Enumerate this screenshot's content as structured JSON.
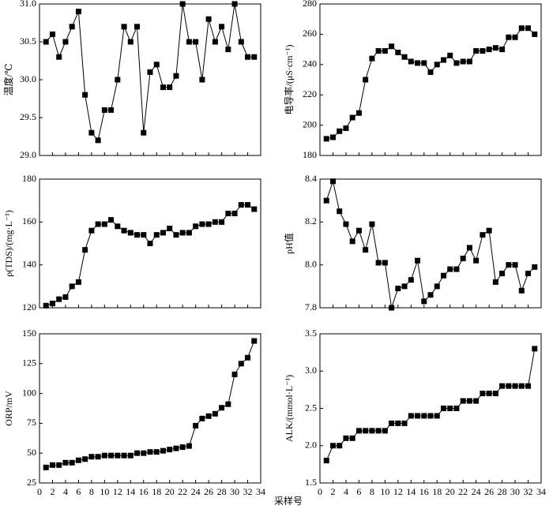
{
  "x_label": "采样号",
  "chart_data": [
    {
      "type": "line",
      "ylabel": "温度/℃",
      "x": [
        1,
        2,
        3,
        4,
        5,
        6,
        7,
        8,
        9,
        10,
        11,
        12,
        13,
        14,
        15,
        16,
        17,
        18,
        19,
        20,
        21,
        22,
        23,
        24,
        25,
        26,
        27,
        28,
        29,
        30,
        31,
        32,
        33
      ],
      "values": [
        30.5,
        30.6,
        30.3,
        30.5,
        30.7,
        30.9,
        29.8,
        29.3,
        29.2,
        29.6,
        29.6,
        30.0,
        30.7,
        30.5,
        30.7,
        29.3,
        30.1,
        30.2,
        29.9,
        29.9,
        30.05,
        31.0,
        30.5,
        30.5,
        30.0,
        30.8,
        30.5,
        30.7,
        30.4,
        31.0,
        30.5,
        30.3,
        30.3
      ],
      "color": "#000000",
      "xlim": [
        0,
        34
      ],
      "xticks": [
        0,
        2,
        4,
        6,
        8,
        10,
        12,
        14,
        16,
        18,
        20,
        22,
        24,
        26,
        28,
        30,
        32,
        34
      ],
      "ylim": [
        29.0,
        31.0
      ],
      "yticks": [
        {
          "value": 29.0,
          "label": "29.0"
        },
        29.5,
        {
          "value": 30.0,
          "label": "30.0"
        },
        30.5,
        {
          "value": 31.0,
          "label": "31.0"
        }
      ]
    },
    {
      "type": "line",
      "ylabel": "电导率/(μS·cm⁻¹)",
      "x": [
        1,
        2,
        3,
        4,
        5,
        6,
        7,
        8,
        9,
        10,
        11,
        12,
        13,
        14,
        15,
        16,
        17,
        18,
        19,
        20,
        21,
        22,
        23,
        24,
        25,
        26,
        27,
        28,
        29,
        30,
        31,
        32,
        33
      ],
      "values": [
        191,
        192,
        196,
        198,
        205,
        208,
        230,
        244,
        249,
        249,
        252,
        248,
        245,
        242,
        241,
        241,
        235,
        240,
        243,
        246,
        241,
        242,
        242,
        249,
        249,
        250,
        251,
        250,
        258,
        258,
        264,
        264,
        260
      ],
      "color": "#000000",
      "xlim": [
        0,
        34
      ],
      "xticks": [
        0,
        2,
        4,
        6,
        8,
        10,
        12,
        14,
        16,
        18,
        20,
        22,
        24,
        26,
        28,
        30,
        32,
        34
      ],
      "ylim": [
        180,
        280
      ],
      "yticks": [
        180,
        200,
        220,
        240,
        260,
        280
      ]
    },
    {
      "type": "line",
      "ylabel": "ρ(TDS)/(mg·L⁻¹)",
      "x": [
        1,
        2,
        3,
        4,
        5,
        6,
        7,
        8,
        9,
        10,
        11,
        12,
        13,
        14,
        15,
        16,
        17,
        18,
        19,
        20,
        21,
        22,
        23,
        24,
        25,
        26,
        27,
        28,
        29,
        30,
        31,
        32,
        33
      ],
      "values": [
        121,
        122,
        124,
        125,
        130,
        132,
        147,
        156,
        159,
        159,
        161,
        158,
        156,
        155,
        154,
        154,
        150,
        154,
        155,
        157,
        154,
        155,
        155,
        158,
        159,
        159,
        160,
        160,
        164,
        164,
        168,
        168,
        166
      ],
      "color": "#000000",
      "xlim": [
        0,
        34
      ],
      "xticks": [
        0,
        2,
        4,
        6,
        8,
        10,
        12,
        14,
        16,
        18,
        20,
        22,
        24,
        26,
        28,
        30,
        32,
        34
      ],
      "ylim": [
        120,
        180
      ],
      "yticks": [
        120,
        140,
        160,
        180
      ]
    },
    {
      "type": "line",
      "ylabel": "pH值",
      "x": [
        1,
        2,
        3,
        4,
        5,
        6,
        7,
        8,
        9,
        10,
        11,
        12,
        13,
        14,
        15,
        16,
        17,
        18,
        19,
        20,
        21,
        22,
        23,
        24,
        25,
        26,
        27,
        28,
        29,
        30,
        31,
        32,
        33
      ],
      "values": [
        8.3,
        8.39,
        8.25,
        8.19,
        8.11,
        8.16,
        8.07,
        8.19,
        8.01,
        8.01,
        7.8,
        7.89,
        7.9,
        7.93,
        8.02,
        7.83,
        7.86,
        7.9,
        7.95,
        7.98,
        7.98,
        8.03,
        8.08,
        8.02,
        8.14,
        8.16,
        7.92,
        7.96,
        8.0,
        8.0,
        7.88,
        7.96,
        7.99
      ],
      "color": "#000000",
      "xlim": [
        0,
        34
      ],
      "xticks": [
        0,
        2,
        4,
        6,
        8,
        10,
        12,
        14,
        16,
        18,
        20,
        22,
        24,
        26,
        28,
        30,
        32,
        34
      ],
      "ylim": [
        7.8,
        8.4
      ],
      "yticks": [
        7.8,
        {
          "value": 8.0,
          "label": "8.0"
        },
        8.2,
        8.4
      ]
    },
    {
      "type": "line",
      "ylabel": "ORP/mV",
      "x": [
        1,
        2,
        3,
        4,
        5,
        6,
        7,
        8,
        9,
        10,
        11,
        12,
        13,
        14,
        15,
        16,
        17,
        18,
        19,
        20,
        21,
        22,
        23,
        24,
        25,
        26,
        27,
        28,
        29,
        30,
        31,
        32,
        33
      ],
      "values": [
        38,
        40,
        40,
        42,
        42,
        44,
        45,
        47,
        47,
        48,
        48,
        48,
        48,
        48,
        50,
        50,
        51,
        51,
        52,
        53,
        54,
        55,
        56,
        73,
        79,
        81,
        83,
        88,
        91,
        116,
        125,
        130,
        144
      ],
      "color": "#000000",
      "xlim": [
        0,
        34
      ],
      "xticks": [
        0,
        2,
        4,
        6,
        8,
        10,
        12,
        14,
        16,
        18,
        20,
        22,
        24,
        26,
        28,
        30,
        32,
        34
      ],
      "ylim": [
        25,
        150
      ],
      "yticks": [
        25,
        50,
        75,
        100,
        125,
        150
      ]
    },
    {
      "type": "line",
      "ylabel": "ALK/(mmol·L⁻¹)",
      "x": [
        1,
        2,
        3,
        4,
        5,
        6,
        7,
        8,
        9,
        10,
        11,
        12,
        13,
        14,
        15,
        16,
        17,
        18,
        19,
        20,
        21,
        22,
        23,
        24,
        25,
        26,
        27,
        28,
        29,
        30,
        31,
        32,
        33
      ],
      "values": [
        1.8,
        2.0,
        2.0,
        2.1,
        2.1,
        2.2,
        2.2,
        2.2,
        2.2,
        2.2,
        2.3,
        2.3,
        2.3,
        2.4,
        2.4,
        2.4,
        2.4,
        2.4,
        2.5,
        2.5,
        2.5,
        2.6,
        2.6,
        2.6,
        2.7,
        2.7,
        2.7,
        2.8,
        2.8,
        2.8,
        2.8,
        2.8,
        3.3
      ],
      "color": "#000000",
      "xlim": [
        0,
        34
      ],
      "xticks": [
        0,
        2,
        4,
        6,
        8,
        10,
        12,
        14,
        16,
        18,
        20,
        22,
        24,
        26,
        28,
        30,
        32,
        34
      ],
      "ylim": [
        1.5,
        3.5
      ],
      "yticks": [
        1.5,
        {
          "value": 2.0,
          "label": "2.0"
        },
        2.5,
        {
          "value": 3.0,
          "label": "3.0"
        },
        3.5
      ]
    }
  ]
}
